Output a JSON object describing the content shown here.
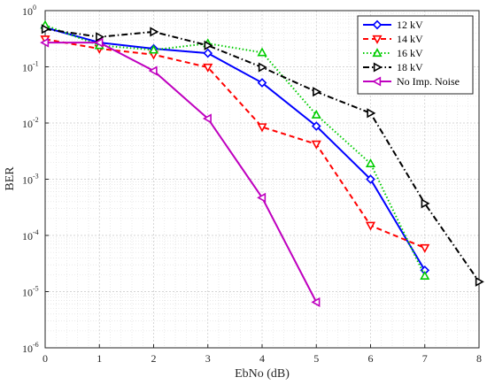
{
  "chart_data": {
    "type": "line",
    "title": "",
    "xlabel": "EbNo (dB)",
    "ylabel": "BER",
    "y_scale": "log",
    "xlim": [
      0,
      8
    ],
    "ylim": [
      1e-06,
      1
    ],
    "x_ticks": [
      "0",
      "1",
      "2",
      "3",
      "4",
      "5",
      "6",
      "7",
      "8"
    ],
    "y_tick_base": "10",
    "y_tick_exps": [
      "-6",
      "-5",
      "-4",
      "-3",
      "-2",
      "-1",
      "0"
    ],
    "grid": true,
    "minor_grid": true,
    "legend_position": "top-right",
    "series": [
      {
        "name": "12 kV",
        "color": "#0000ff",
        "marker": "diamond",
        "line_style": "solid",
        "x": [
          0,
          1,
          2,
          3,
          4,
          5,
          6,
          7
        ],
        "y": [
          0.5,
          0.27,
          0.21,
          0.175,
          0.052,
          0.0088,
          0.001,
          2.4e-05
        ]
      },
      {
        "name": "14 kV",
        "color": "#ff0000",
        "marker": "triangle-down",
        "line_style": "dashed",
        "x": [
          0,
          1,
          2,
          3,
          4,
          5,
          6,
          7
        ],
        "y": [
          0.31,
          0.21,
          0.165,
          0.098,
          0.0085,
          0.0042,
          0.00015,
          6e-05
        ]
      },
      {
        "name": "16 kV",
        "color": "#00cc00",
        "marker": "triangle-up",
        "line_style": "dotted",
        "x": [
          0,
          1,
          2,
          3,
          4,
          5,
          6,
          7
        ],
        "y": [
          0.55,
          0.24,
          0.2,
          0.26,
          0.18,
          0.014,
          0.0019,
          1.9e-05
        ]
      },
      {
        "name": "18 kV",
        "color": "#000000",
        "marker": "triangle-right",
        "line_style": "dashdot",
        "x": [
          0,
          1,
          2,
          3,
          4,
          5,
          6,
          7,
          8
        ],
        "y": [
          0.47,
          0.34,
          0.42,
          0.24,
          0.098,
          0.036,
          0.015,
          0.00037,
          1.5e-05
        ]
      },
      {
        "name": "No Imp. Noise",
        "color": "#bf00bf",
        "marker": "triangle-left",
        "line_style": "solid",
        "x": [
          0,
          1,
          2,
          3,
          4,
          5
        ],
        "y": [
          0.27,
          0.27,
          0.085,
          0.012,
          0.00047,
          6.5e-06
        ]
      }
    ]
  }
}
